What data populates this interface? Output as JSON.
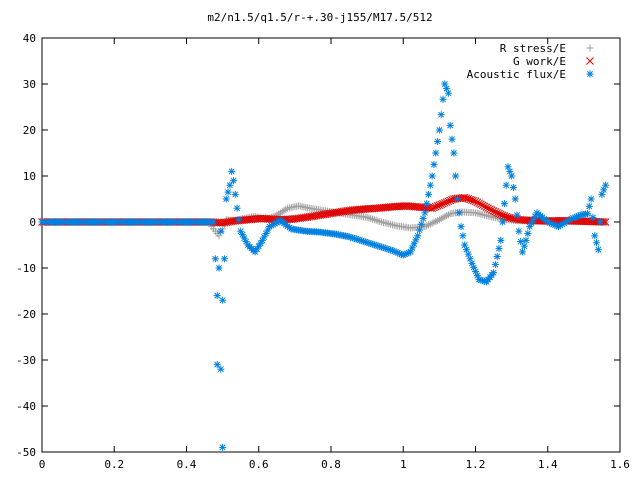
{
  "chart_data": {
    "type": "scatter",
    "title": "m2/n1.5/q1.5/r-+.30-j155/M17.5/512",
    "xlabel": "",
    "ylabel": "",
    "xlim": [
      0,
      1.6
    ],
    "ylim": [
      -50,
      40
    ],
    "xticks": [
      "0",
      "0.2",
      "0.4",
      "0.6",
      "0.8",
      "1",
      "1.2",
      "1.4",
      "1.6"
    ],
    "yticks": [
      "40",
      "30",
      "20",
      "10",
      "0",
      "-10",
      "-20",
      "-30",
      "-40",
      "-50"
    ],
    "grid": false,
    "legend_position": "top-right",
    "series": [
      {
        "name": "R stress/E",
        "marker": "+",
        "color": "#a0a0a0",
        "points": [
          [
            0.47,
            -1
          ],
          [
            0.48,
            -2
          ],
          [
            0.49,
            -3
          ],
          [
            0.5,
            -1.5
          ],
          [
            0.51,
            0.5
          ],
          [
            0.53,
            0.3
          ],
          [
            0.56,
            0.8
          ],
          [
            0.59,
            1.2
          ],
          [
            0.62,
            0.5
          ],
          [
            0.65,
            1.5
          ],
          [
            0.68,
            3.0
          ],
          [
            0.71,
            3.5
          ],
          [
            0.74,
            3.0
          ],
          [
            0.78,
            2.5
          ],
          [
            0.82,
            2.0
          ],
          [
            0.86,
            1.5
          ],
          [
            0.9,
            1.0
          ],
          [
            0.94,
            0.0
          ],
          [
            0.98,
            -0.8
          ],
          [
            1.02,
            -1.3
          ],
          [
            1.06,
            -1.0
          ],
          [
            1.1,
            0.5
          ],
          [
            1.13,
            1.8
          ],
          [
            1.16,
            2.2
          ],
          [
            1.2,
            2.0
          ],
          [
            1.24,
            1.2
          ],
          [
            1.28,
            0.5
          ],
          [
            1.32,
            0.3
          ],
          [
            1.36,
            0.2
          ],
          [
            1.4,
            0.3
          ],
          [
            1.44,
            0.2
          ],
          [
            1.48,
            0.1
          ],
          [
            1.52,
            0.1
          ],
          [
            1.56,
            0.0
          ]
        ]
      },
      {
        "name": "G work/E",
        "marker": "x",
        "color": "#e00000",
        "points": [
          [
            0.47,
            0.0
          ],
          [
            0.5,
            -0.2
          ],
          [
            0.53,
            0.2
          ],
          [
            0.57,
            0.5
          ],
          [
            0.61,
            0.8
          ],
          [
            0.65,
            0.5
          ],
          [
            0.69,
            0.6
          ],
          [
            0.73,
            1.0
          ],
          [
            0.77,
            1.5
          ],
          [
            0.81,
            2.0
          ],
          [
            0.85,
            2.5
          ],
          [
            0.89,
            2.8
          ],
          [
            0.93,
            3.0
          ],
          [
            0.97,
            3.3
          ],
          [
            1.01,
            3.5
          ],
          [
            1.05,
            3.2
          ],
          [
            1.08,
            3.0
          ],
          [
            1.11,
            4.0
          ],
          [
            1.14,
            5.0
          ],
          [
            1.17,
            5.3
          ],
          [
            1.2,
            4.5
          ],
          [
            1.23,
            3.2
          ],
          [
            1.26,
            2.0
          ],
          [
            1.29,
            1.0
          ],
          [
            1.32,
            0.5
          ],
          [
            1.36,
            0.3
          ],
          [
            1.4,
            0.2
          ],
          [
            1.44,
            0.3
          ],
          [
            1.48,
            0.2
          ],
          [
            1.52,
            0.1
          ],
          [
            1.56,
            0.0
          ]
        ]
      },
      {
        "name": "Acoustic flux/E",
        "marker": "*",
        "color": "#0080e0",
        "points": [
          [
            0.48,
            -8
          ],
          [
            0.485,
            -16
          ],
          [
            0.485,
            -31
          ],
          [
            0.49,
            -10
          ],
          [
            0.495,
            -2
          ],
          [
            0.495,
            -32
          ],
          [
            0.5,
            -17
          ],
          [
            0.5,
            -49
          ],
          [
            0.505,
            -8
          ],
          [
            0.51,
            5
          ],
          [
            0.52,
            8
          ],
          [
            0.525,
            11
          ],
          [
            0.53,
            9
          ],
          [
            0.54,
            3
          ],
          [
            0.55,
            -2
          ],
          [
            0.57,
            -5
          ],
          [
            0.59,
            -6.5
          ],
          [
            0.61,
            -4
          ],
          [
            0.63,
            -1
          ],
          [
            0.66,
            0.3
          ],
          [
            0.69,
            -1.5
          ],
          [
            0.73,
            -2
          ],
          [
            0.77,
            -2.2
          ],
          [
            0.81,
            -2.6
          ],
          [
            0.85,
            -3.2
          ],
          [
            0.89,
            -4.2
          ],
          [
            0.93,
            -5.2
          ],
          [
            0.97,
            -6.2
          ],
          [
            1.0,
            -7.2
          ],
          [
            1.02,
            -6.5
          ],
          [
            1.04,
            -3
          ],
          [
            1.06,
            2
          ],
          [
            1.08,
            10
          ],
          [
            1.1,
            20
          ],
          [
            1.115,
            30
          ],
          [
            1.125,
            28
          ],
          [
            1.13,
            21
          ],
          [
            1.14,
            15
          ],
          [
            1.15,
            5
          ],
          [
            1.16,
            -1
          ],
          [
            1.17,
            -5
          ],
          [
            1.19,
            -9
          ],
          [
            1.21,
            -12.5
          ],
          [
            1.23,
            -13
          ],
          [
            1.25,
            -11
          ],
          [
            1.27,
            -4
          ],
          [
            1.28,
            4
          ],
          [
            1.29,
            12
          ],
          [
            1.3,
            10
          ],
          [
            1.31,
            5
          ],
          [
            1.32,
            -2
          ],
          [
            1.33,
            -6.5
          ],
          [
            1.34,
            -4
          ],
          [
            1.35,
            -1
          ],
          [
            1.37,
            2
          ],
          [
            1.4,
            0
          ],
          [
            1.43,
            -1
          ],
          [
            1.46,
            0.5
          ],
          [
            1.49,
            1.5
          ],
          [
            1.51,
            1.8
          ],
          [
            1.52,
            5
          ],
          [
            1.53,
            -3
          ],
          [
            1.54,
            -6
          ],
          [
            1.55,
            6
          ],
          [
            1.56,
            8
          ]
        ]
      }
    ]
  }
}
